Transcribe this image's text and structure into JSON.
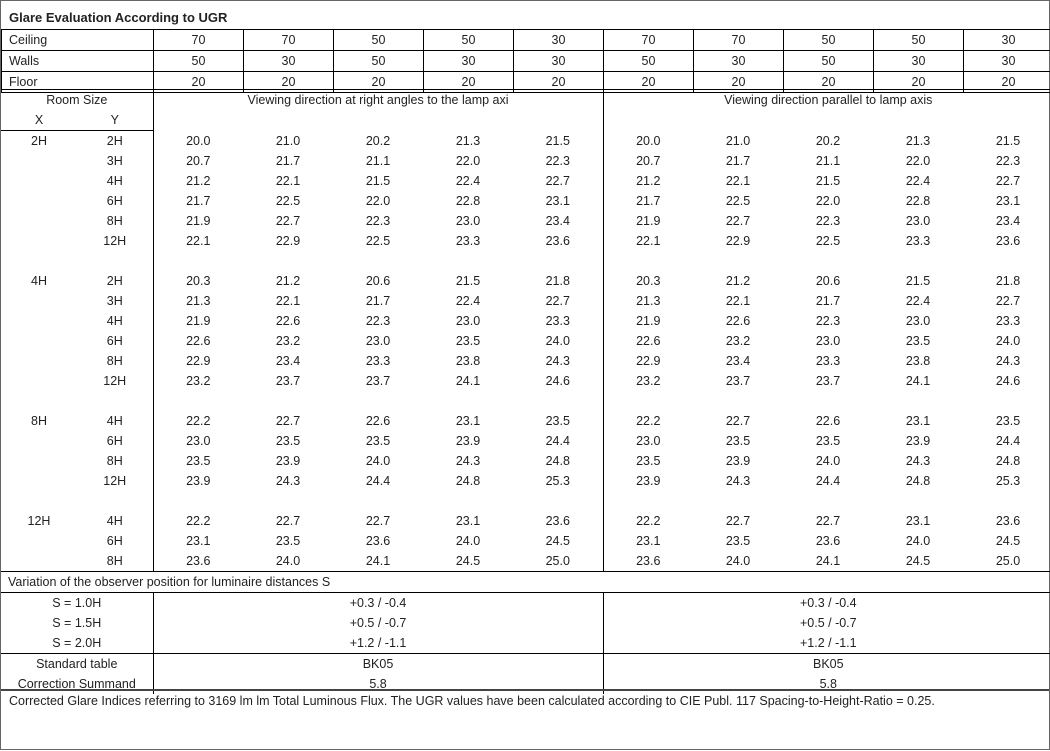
{
  "title": "Glare Evaluation According to UGR",
  "reflectances": [
    {
      "label": "Ceiling",
      "values": [
        "70",
        "70",
        "50",
        "50",
        "30",
        "70",
        "70",
        "50",
        "50",
        "30"
      ]
    },
    {
      "label": "Walls",
      "values": [
        "50",
        "30",
        "50",
        "30",
        "30",
        "50",
        "30",
        "50",
        "30",
        "30"
      ]
    },
    {
      "label": "Floor",
      "values": [
        "20",
        "20",
        "20",
        "20",
        "20",
        "20",
        "20",
        "20",
        "20",
        "20"
      ]
    }
  ],
  "header": {
    "room_size": "Room Size",
    "x": "X",
    "y": "Y",
    "dir_right_angles": "Viewing direction at right angles to the lamp axi",
    "dir_parallel": "Viewing direction parallel to lamp axis"
  },
  "groups": [
    {
      "x": "2H",
      "rows": [
        {
          "y": "2H",
          "v": [
            "20.0",
            "21.0",
            "20.2",
            "21.3",
            "21.5",
            "20.0",
            "21.0",
            "20.2",
            "21.3",
            "21.5"
          ]
        },
        {
          "y": "3H",
          "v": [
            "20.7",
            "21.7",
            "21.1",
            "22.0",
            "22.3",
            "20.7",
            "21.7",
            "21.1",
            "22.0",
            "22.3"
          ]
        },
        {
          "y": "4H",
          "v": [
            "21.2",
            "22.1",
            "21.5",
            "22.4",
            "22.7",
            "21.2",
            "22.1",
            "21.5",
            "22.4",
            "22.7"
          ]
        },
        {
          "y": "6H",
          "v": [
            "21.7",
            "22.5",
            "22.0",
            "22.8",
            "23.1",
            "21.7",
            "22.5",
            "22.0",
            "22.8",
            "23.1"
          ]
        },
        {
          "y": "8H",
          "v": [
            "21.9",
            "22.7",
            "22.3",
            "23.0",
            "23.4",
            "21.9",
            "22.7",
            "22.3",
            "23.0",
            "23.4"
          ]
        },
        {
          "y": "12H",
          "v": [
            "22.1",
            "22.9",
            "22.5",
            "23.3",
            "23.6",
            "22.1",
            "22.9",
            "22.5",
            "23.3",
            "23.6"
          ]
        }
      ]
    },
    {
      "x": "4H",
      "rows": [
        {
          "y": "2H",
          "v": [
            "20.3",
            "21.2",
            "20.6",
            "21.5",
            "21.8",
            "20.3",
            "21.2",
            "20.6",
            "21.5",
            "21.8"
          ]
        },
        {
          "y": "3H",
          "v": [
            "21.3",
            "22.1",
            "21.7",
            "22.4",
            "22.7",
            "21.3",
            "22.1",
            "21.7",
            "22.4",
            "22.7"
          ]
        },
        {
          "y": "4H",
          "v": [
            "21.9",
            "22.6",
            "22.3",
            "23.0",
            "23.3",
            "21.9",
            "22.6",
            "22.3",
            "23.0",
            "23.3"
          ]
        },
        {
          "y": "6H",
          "v": [
            "22.6",
            "23.2",
            "23.0",
            "23.5",
            "24.0",
            "22.6",
            "23.2",
            "23.0",
            "23.5",
            "24.0"
          ]
        },
        {
          "y": "8H",
          "v": [
            "22.9",
            "23.4",
            "23.3",
            "23.8",
            "24.3",
            "22.9",
            "23.4",
            "23.3",
            "23.8",
            "24.3"
          ]
        },
        {
          "y": "12H",
          "v": [
            "23.2",
            "23.7",
            "23.7",
            "24.1",
            "24.6",
            "23.2",
            "23.7",
            "23.7",
            "24.1",
            "24.6"
          ]
        }
      ]
    },
    {
      "x": "8H",
      "rows": [
        {
          "y": "4H",
          "v": [
            "22.2",
            "22.7",
            "22.6",
            "23.1",
            "23.5",
            "22.2",
            "22.7",
            "22.6",
            "23.1",
            "23.5"
          ]
        },
        {
          "y": "6H",
          "v": [
            "23.0",
            "23.5",
            "23.5",
            "23.9",
            "24.4",
            "23.0",
            "23.5",
            "23.5",
            "23.9",
            "24.4"
          ]
        },
        {
          "y": "8H",
          "v": [
            "23.5",
            "23.9",
            "24.0",
            "24.3",
            "24.8",
            "23.5",
            "23.9",
            "24.0",
            "24.3",
            "24.8"
          ]
        },
        {
          "y": "12H",
          "v": [
            "23.9",
            "24.3",
            "24.4",
            "24.8",
            "25.3",
            "23.9",
            "24.3",
            "24.4",
            "24.8",
            "25.3"
          ]
        }
      ]
    },
    {
      "x": "12H",
      "rows": [
        {
          "y": "4H",
          "v": [
            "22.2",
            "22.7",
            "22.7",
            "23.1",
            "23.6",
            "22.2",
            "22.7",
            "22.7",
            "23.1",
            "23.6"
          ]
        },
        {
          "y": "6H",
          "v": [
            "23.1",
            "23.5",
            "23.6",
            "24.0",
            "24.5",
            "23.1",
            "23.5",
            "23.6",
            "24.0",
            "24.5"
          ]
        },
        {
          "y": "8H",
          "v": [
            "23.6",
            "24.0",
            "24.1",
            "24.5",
            "25.0",
            "23.6",
            "24.0",
            "24.1",
            "24.5",
            "25.0"
          ]
        }
      ]
    }
  ],
  "variation": {
    "title": "Variation of the observer position for luminaire distances S",
    "rows": [
      {
        "label": "S = 1.0H",
        "right_angles": "+0.3 / -0.4",
        "parallel": "+0.3 / -0.4"
      },
      {
        "label": "S = 1.5H",
        "right_angles": "+0.5 / -0.7",
        "parallel": "+0.5 / -0.7"
      },
      {
        "label": "S = 2.0H",
        "right_angles": "+1.2 / -1.1",
        "parallel": "+1.2 / -1.1"
      }
    ]
  },
  "standard": {
    "table_label": "Standard table",
    "table_right": "BK05",
    "table_parallel": "BK05",
    "correction_label": "Correction Summand",
    "correction_right": "5.8",
    "correction_parallel": "5.8"
  },
  "footer": "Corrected Glare Indices referring to 3169 lm lm Total Luminous Flux. The UGR values have been calculated according to CIE Publ. 117    Spacing-to-Height-Ratio = 0.25."
}
